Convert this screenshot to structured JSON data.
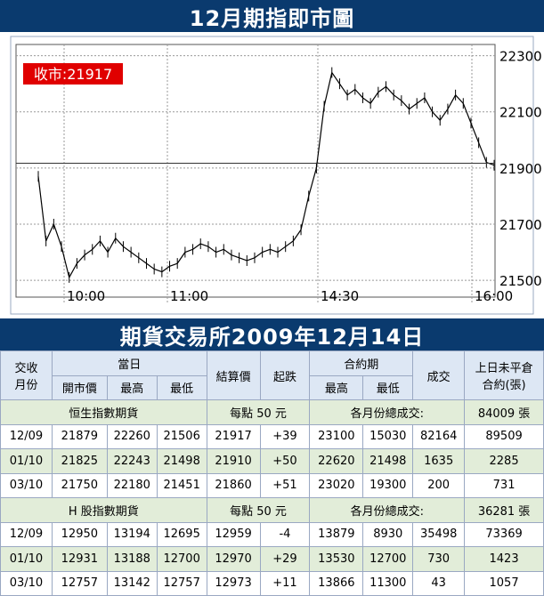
{
  "title_top": "12月期指即市圖",
  "title_mid": "期貨交易所2009年12月14日",
  "close_label": "收市:21917",
  "colors": {
    "banner": "#0a3a6e",
    "close_box": "#e00000",
    "section_bg": "#e2edd9",
    "header_bg": "#dde7f4"
  },
  "chart_data": {
    "type": "line",
    "x_ticks": [
      "10:00",
      "11:00",
      "14:30",
      "16:00"
    ],
    "y_ticks": [
      22300,
      22100,
      21900,
      21700,
      21500
    ],
    "ylim": [
      21440,
      22340
    ],
    "grid": true,
    "close_value": 21917,
    "series": [
      {
        "values": [
          21870,
          21640,
          21700,
          21620,
          21510,
          21560,
          21590,
          21610,
          21640,
          21600,
          21650,
          21620,
          21600,
          21580,
          21560,
          21540,
          21530,
          21550,
          21560,
          21600,
          21610,
          21630,
          21620,
          21600,
          21610,
          21590,
          21580,
          21570,
          21580,
          21600,
          21610,
          21600,
          21620,
          21640,
          21680,
          21800,
          21900,
          22120,
          22240,
          22200,
          22160,
          22180,
          22150,
          22130,
          22170,
          22190,
          22160,
          22140,
          22110,
          22130,
          22150,
          22100,
          22070,
          22110,
          22160,
          22130,
          22060,
          21990,
          21920,
          21910
        ]
      }
    ]
  },
  "table": {
    "h1": {
      "contract": "交收\n月份",
      "day": "當日",
      "settle": "結算價",
      "change": "起跌",
      "life": "合約期",
      "volume": "成交",
      "oi": "上日未平倉\n合約(張)"
    },
    "h2": {
      "open": "開市價",
      "high": "最高",
      "low": "最低",
      "life_high": "最高",
      "life_low": "最低"
    },
    "sections": [
      {
        "name": "恒生指數期貨",
        "per_point": "每點 50 元",
        "total_label": "各月份總成交:",
        "total_value": "84009 張",
        "rows": [
          [
            "12/09",
            "21879",
            "22260",
            "21506",
            "21917",
            "+39",
            "23100",
            "15030",
            "82164",
            "89509"
          ],
          [
            "01/10",
            "21825",
            "22243",
            "21498",
            "21910",
            "+50",
            "22620",
            "21498",
            "1635",
            "2285"
          ],
          [
            "03/10",
            "21750",
            "22180",
            "21451",
            "21860",
            "+51",
            "23020",
            "19300",
            "200",
            "731"
          ]
        ]
      },
      {
        "name": "H 股指數期貨",
        "per_point": "每點 50 元",
        "total_label": "各月份總成交:",
        "total_value": "36281 張",
        "rows": [
          [
            "12/09",
            "12950",
            "13194",
            "12695",
            "12959",
            "-4",
            "13879",
            "8930",
            "35498",
            "73369"
          ],
          [
            "01/10",
            "12931",
            "13188",
            "12700",
            "12970",
            "+29",
            "13530",
            "12700",
            "730",
            "1423"
          ],
          [
            "03/10",
            "12757",
            "13142",
            "12757",
            "12973",
            "+11",
            "13866",
            "11300",
            "43",
            "1057"
          ]
        ]
      }
    ]
  }
}
